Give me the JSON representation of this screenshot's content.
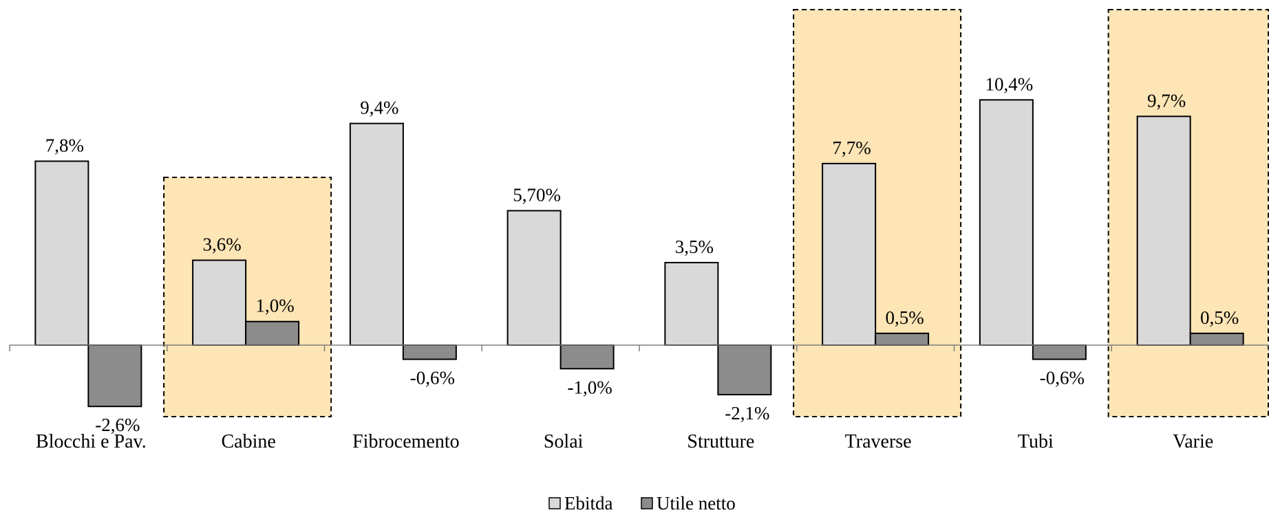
{
  "chart_data": {
    "type": "bar",
    "categories": [
      "Blocchi e Pav.",
      "Cabine",
      "Fibrocemento",
      "Solai",
      "Strutture",
      "Traverse",
      "Tubi",
      "Varie"
    ],
    "series": [
      {
        "name": "Ebitda",
        "values": [
          7.8,
          3.6,
          9.4,
          5.7,
          3.5,
          7.7,
          10.4,
          9.7
        ],
        "labels": [
          "7,8%",
          "3,6%",
          "9,4%",
          "5,70%",
          "3,5%",
          "7,7%",
          "10,4%",
          "9,7%"
        ],
        "color": "#d9d9d9"
      },
      {
        "name": "Utile netto",
        "values": [
          -2.6,
          1.0,
          -0.6,
          -1.0,
          -2.1,
          0.5,
          -0.6,
          0.5
        ],
        "labels": [
          "-2,6%",
          "1,0%",
          "-0,6%",
          "-1,0%",
          "-2,1%",
          "0,5%",
          "-0,6%",
          "0,5%"
        ],
        "color": "#8c8c8c"
      }
    ],
    "highlighted_categories": [
      "Cabine",
      "Traverse",
      "Varie"
    ],
    "highlight_color": "#fde5b5",
    "bar_border_color": "#000000",
    "legend_position": "bottom",
    "grid": false,
    "title": "",
    "xlabel": "",
    "ylabel": ""
  }
}
